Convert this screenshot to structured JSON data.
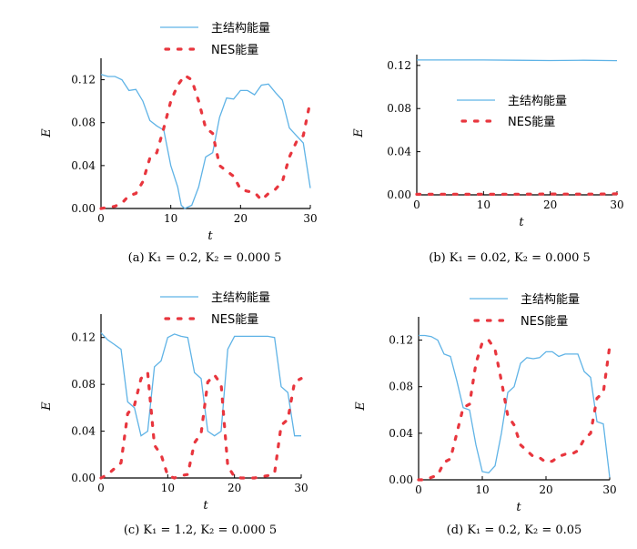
{
  "chart_data": [
    {
      "type": "line",
      "caption": "(a) K₁ = 0.2,  K₂ = 0.000 5",
      "xlabel": "t",
      "ylabel": "E",
      "xlim": [
        0,
        30
      ],
      "ylim": [
        0,
        0.14
      ],
      "xticks": [
        "0",
        "10",
        "20",
        "30"
      ],
      "yticks": [
        "0.00",
        "0.04",
        "0.08",
        "0.12"
      ],
      "legend_position": "top",
      "series": [
        {
          "name": "主结构能量",
          "color": "#5fb3e6",
          "style": "solid",
          "points": [
            [
              0,
              0.125
            ],
            [
              1,
              0.123
            ],
            [
              2,
              0.123
            ],
            [
              3,
              0.12
            ],
            [
              4,
              0.11
            ],
            [
              5,
              0.111
            ],
            [
              6,
              0.1
            ],
            [
              7,
              0.082
            ],
            [
              8,
              0.077
            ],
            [
              9,
              0.073
            ],
            [
              10,
              0.04
            ],
            [
              11,
              0.02
            ],
            [
              11.5,
              0.003
            ],
            [
              12,
              0.0
            ],
            [
              13,
              0.003
            ],
            [
              14,
              0.02
            ],
            [
              15,
              0.048
            ],
            [
              16,
              0.052
            ],
            [
              17,
              0.085
            ],
            [
              18,
              0.103
            ],
            [
              19,
              0.102
            ],
            [
              20,
              0.11
            ],
            [
              21,
              0.11
            ],
            [
              22,
              0.106
            ],
            [
              23,
              0.115
            ],
            [
              24,
              0.116
            ],
            [
              25,
              0.108
            ],
            [
              26,
              0.101
            ],
            [
              27,
              0.075
            ],
            [
              28,
              0.068
            ],
            [
              29,
              0.061
            ],
            [
              30,
              0.019
            ]
          ]
        },
        {
          "name": "NES能量",
          "color": "#e8363e",
          "style": "dashed",
          "points": [
            [
              0,
              0.0
            ],
            [
              1,
              0.001
            ],
            [
              2,
              0.002
            ],
            [
              3,
              0.005
            ],
            [
              4,
              0.012
            ],
            [
              5,
              0.014
            ],
            [
              6,
              0.025
            ],
            [
              7,
              0.047
            ],
            [
              8,
              0.052
            ],
            [
              9,
              0.075
            ],
            [
              10,
              0.1
            ],
            [
              11,
              0.115
            ],
            [
              12,
              0.124
            ],
            [
              13,
              0.12
            ],
            [
              14,
              0.1
            ],
            [
              15,
              0.075
            ],
            [
              16,
              0.07
            ],
            [
              17,
              0.04
            ],
            [
              18,
              0.035
            ],
            [
              19,
              0.03
            ],
            [
              20,
              0.018
            ],
            [
              21,
              0.016
            ],
            [
              22,
              0.015
            ],
            [
              23,
              0.008
            ],
            [
              24,
              0.014
            ],
            [
              25,
              0.018
            ],
            [
              26,
              0.025
            ],
            [
              27,
              0.048
            ],
            [
              28,
              0.062
            ],
            [
              29,
              0.068
            ],
            [
              30,
              0.1
            ]
          ]
        }
      ]
    },
    {
      "type": "line",
      "caption": "(b) K₁ = 0.02,  K₂ = 0.000 5",
      "xlabel": "t",
      "ylabel": "E",
      "xlim": [
        0,
        30
      ],
      "ylim": [
        0,
        0.13
      ],
      "xticks": [
        "0",
        "10",
        "20",
        "30"
      ],
      "yticks": [
        "0.00",
        "0.04",
        "0.08",
        "0.12"
      ],
      "legend_position": "center",
      "series": [
        {
          "name": "主结构能量",
          "color": "#5fb3e6",
          "style": "solid",
          "points": [
            [
              0,
              0.125
            ],
            [
              5,
              0.125
            ],
            [
              10,
              0.125
            ],
            [
              15,
              0.1248
            ],
            [
              20,
              0.1245
            ],
            [
              25,
              0.1248
            ],
            [
              30,
              0.1244
            ]
          ]
        },
        {
          "name": "NES能量",
          "color": "#e8363e",
          "style": "dashed",
          "points": [
            [
              0,
              0.0005
            ],
            [
              5,
              0.0006
            ],
            [
              10,
              0.0005
            ],
            [
              15,
              0.0006
            ],
            [
              20,
              0.0008
            ],
            [
              25,
              0.0006
            ],
            [
              30,
              0.0009
            ]
          ]
        }
      ]
    },
    {
      "type": "line",
      "caption": "(c) K₁ = 1.2,  K₂ = 0.000 5",
      "xlabel": "t",
      "ylabel": "E",
      "xlim": [
        0,
        30
      ],
      "ylim": [
        0,
        0.14
      ],
      "xticks": [
        "0",
        "10",
        "20",
        "30"
      ],
      "yticks": [
        "0.00",
        "0.04",
        "0.08",
        "0.12"
      ],
      "legend_position": "top",
      "series": [
        {
          "name": "主结构能量",
          "color": "#5fb3e6",
          "style": "solid",
          "points": [
            [
              0,
              0.124
            ],
            [
              1,
              0.118
            ],
            [
              2,
              0.114
            ],
            [
              3,
              0.11
            ],
            [
              4,
              0.065
            ],
            [
              5,
              0.06
            ],
            [
              6,
              0.036
            ],
            [
              7,
              0.04
            ],
            [
              8,
              0.095
            ],
            [
              9,
              0.1
            ],
            [
              10,
              0.12
            ],
            [
              11,
              0.123
            ],
            [
              12,
              0.121
            ],
            [
              13,
              0.12
            ],
            [
              14,
              0.09
            ],
            [
              15,
              0.085
            ],
            [
              16,
              0.04
            ],
            [
              17,
              0.036
            ],
            [
              18,
              0.04
            ],
            [
              19,
              0.11
            ],
            [
              20,
              0.121
            ],
            [
              21,
              0.121
            ],
            [
              22,
              0.121
            ],
            [
              23,
              0.121
            ],
            [
              24,
              0.121
            ],
            [
              25,
              0.121
            ],
            [
              26,
              0.12
            ],
            [
              27,
              0.078
            ],
            [
              28,
              0.073
            ],
            [
              29,
              0.036
            ],
            [
              30,
              0.036
            ]
          ]
        },
        {
          "name": "NES能量",
          "color": "#e8363e",
          "style": "dashed",
          "points": [
            [
              0,
              0.0
            ],
            [
              1,
              0.003
            ],
            [
              2,
              0.008
            ],
            [
              3,
              0.013
            ],
            [
              4,
              0.055
            ],
            [
              5,
              0.062
            ],
            [
              6,
              0.085
            ],
            [
              7,
              0.09
            ],
            [
              8,
              0.028
            ],
            [
              9,
              0.02
            ],
            [
              10,
              0.002
            ],
            [
              11,
              0.0
            ],
            [
              12,
              0.002
            ],
            [
              13,
              0.003
            ],
            [
              14,
              0.03
            ],
            [
              15,
              0.038
            ],
            [
              16,
              0.082
            ],
            [
              17,
              0.088
            ],
            [
              18,
              0.08
            ],
            [
              19,
              0.01
            ],
            [
              20,
              0.001
            ],
            [
              21,
              0.0
            ],
            [
              22,
              0.0
            ],
            [
              23,
              0.0
            ],
            [
              24,
              0.001
            ],
            [
              25,
              0.002
            ],
            [
              26,
              0.004
            ],
            [
              27,
              0.045
            ],
            [
              28,
              0.05
            ],
            [
              29,
              0.082
            ],
            [
              30,
              0.085
            ]
          ]
        }
      ]
    },
    {
      "type": "line",
      "caption": "(d) K₁ = 0.2,  K₂ = 0.05",
      "xlabel": "t",
      "ylabel": "E",
      "xlim": [
        0,
        30
      ],
      "ylim": [
        0,
        0.14
      ],
      "xticks": [
        "0",
        "10",
        "20",
        "30"
      ],
      "yticks": [
        "0.00",
        "0.04",
        "0.08",
        "0.12"
      ],
      "legend_position": "top",
      "series": [
        {
          "name": "主结构能量",
          "color": "#5fb3e6",
          "style": "solid",
          "points": [
            [
              0,
              0.124
            ],
            [
              1,
              0.124
            ],
            [
              2,
              0.123
            ],
            [
              3,
              0.12
            ],
            [
              4,
              0.108
            ],
            [
              5,
              0.106
            ],
            [
              6,
              0.085
            ],
            [
              7,
              0.062
            ],
            [
              8,
              0.06
            ],
            [
              9,
              0.03
            ],
            [
              10,
              0.007
            ],
            [
              11,
              0.006
            ],
            [
              12,
              0.012
            ],
            [
              13,
              0.04
            ],
            [
              14,
              0.075
            ],
            [
              15,
              0.08
            ],
            [
              16,
              0.1
            ],
            [
              17,
              0.105
            ],
            [
              18,
              0.104
            ],
            [
              19,
              0.105
            ],
            [
              20,
              0.11
            ],
            [
              21,
              0.11
            ],
            [
              22,
              0.106
            ],
            [
              23,
              0.108
            ],
            [
              24,
              0.108
            ],
            [
              25,
              0.108
            ],
            [
              26,
              0.093
            ],
            [
              27,
              0.088
            ],
            [
              28,
              0.05
            ],
            [
              29,
              0.048
            ],
            [
              30,
              0.002
            ]
          ]
        },
        {
          "name": "NES能量",
          "color": "#e8363e",
          "style": "dashed",
          "points": [
            [
              0,
              0.0
            ],
            [
              1,
              0.0
            ],
            [
              2,
              0.002
            ],
            [
              3,
              0.004
            ],
            [
              4,
              0.015
            ],
            [
              5,
              0.018
            ],
            [
              6,
              0.04
            ],
            [
              7,
              0.062
            ],
            [
              8,
              0.065
            ],
            [
              9,
              0.1
            ],
            [
              10,
              0.118
            ],
            [
              11,
              0.12
            ],
            [
              12,
              0.112
            ],
            [
              13,
              0.085
            ],
            [
              14,
              0.055
            ],
            [
              15,
              0.047
            ],
            [
              16,
              0.03
            ],
            [
              17,
              0.025
            ],
            [
              18,
              0.02
            ],
            [
              19,
              0.019
            ],
            [
              20,
              0.015
            ],
            [
              21,
              0.016
            ],
            [
              22,
              0.02
            ],
            [
              23,
              0.022
            ],
            [
              24,
              0.022
            ],
            [
              25,
              0.025
            ],
            [
              26,
              0.035
            ],
            [
              27,
              0.04
            ],
            [
              28,
              0.07
            ],
            [
              29,
              0.075
            ],
            [
              30,
              0.115
            ]
          ]
        }
      ]
    }
  ]
}
